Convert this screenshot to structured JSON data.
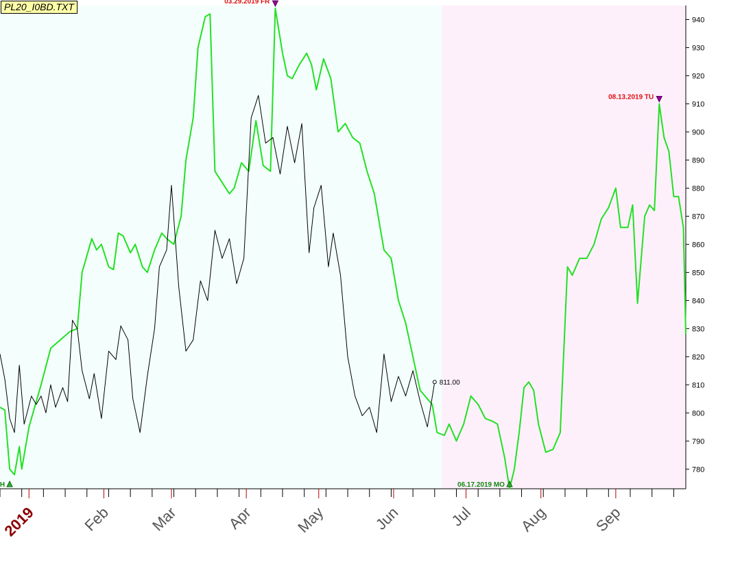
{
  "chart_title": "PL20_I0BD.TXT",
  "chart_data": {
    "type": "line",
    "title": "PL20_I0BD.TXT",
    "xlabel": "",
    "ylabel": "",
    "ylim": [
      773,
      945
    ],
    "xlim": [
      "2018-12-20",
      "2019-09-30"
    ],
    "yticks": [
      780,
      790,
      800,
      810,
      820,
      830,
      840,
      850,
      860,
      870,
      880,
      890,
      900,
      910,
      920,
      930,
      940
    ],
    "xticks": [
      {
        "label": "2019",
        "date": "2019-01-01",
        "year": true
      },
      {
        "label": "Feb",
        "date": "2019-02-01"
      },
      {
        "label": "Mar",
        "date": "2019-03-01"
      },
      {
        "label": "Apr",
        "date": "2019-04-01"
      },
      {
        "label": "May",
        "date": "2019-05-01"
      },
      {
        "label": "Jun",
        "date": "2019-06-01"
      },
      {
        "label": "Jul",
        "date": "2019-07-01"
      },
      {
        "label": "Aug",
        "date": "2019-08-01"
      },
      {
        "label": "Sep",
        "date": "2019-09-01"
      }
    ],
    "grid": false,
    "y_axis_side": "right",
    "background_regions": [
      {
        "from": "2018-12-20",
        "to": "2019-06-21",
        "color": "#f4fffd"
      },
      {
        "from": "2019-06-21",
        "to": "2019-09-30",
        "color": "#fdf0fb"
      }
    ],
    "series": [
      {
        "color": "#22e022",
        "points": [
          [
            "2018-12-20",
            802
          ],
          [
            "2018-12-22",
            801
          ],
          [
            "2018-12-24",
            780
          ],
          [
            "2018-12-26",
            778
          ],
          [
            "2018-12-28",
            788
          ],
          [
            "2018-12-29",
            780
          ],
          [
            "2019-01-01",
            795
          ],
          [
            "2019-01-04",
            804
          ],
          [
            "2019-01-06",
            810
          ],
          [
            "2019-01-10",
            823
          ],
          [
            "2019-01-14",
            826
          ],
          [
            "2019-01-18",
            829
          ],
          [
            "2019-01-21",
            830
          ],
          [
            "2019-01-23",
            850
          ],
          [
            "2019-01-27",
            862
          ],
          [
            "2019-01-29",
            858
          ],
          [
            "2019-01-31",
            860
          ],
          [
            "2019-02-03",
            852
          ],
          [
            "2019-02-05",
            851
          ],
          [
            "2019-02-07",
            864
          ],
          [
            "2019-02-09",
            863
          ],
          [
            "2019-02-12",
            857
          ],
          [
            "2019-02-14",
            860
          ],
          [
            "2019-02-17",
            852
          ],
          [
            "2019-02-19",
            850
          ],
          [
            "2019-02-22",
            858
          ],
          [
            "2019-02-25",
            864
          ],
          [
            "2019-02-27",
            862
          ],
          [
            "2019-03-02",
            860
          ],
          [
            "2019-03-05",
            870
          ],
          [
            "2019-03-07",
            890
          ],
          [
            "2019-03-10",
            905
          ],
          [
            "2019-03-12",
            930
          ],
          [
            "2019-03-15",
            941
          ],
          [
            "2019-03-17",
            942
          ],
          [
            "2019-03-19",
            886
          ],
          [
            "2019-03-22",
            882
          ],
          [
            "2019-03-25",
            878
          ],
          [
            "2019-03-27",
            880
          ],
          [
            "2019-03-30",
            889
          ],
          [
            "2019-04-02",
            886
          ],
          [
            "2019-04-05",
            904
          ],
          [
            "2019-04-08",
            888
          ],
          [
            "2019-04-11",
            886
          ],
          [
            "2019-04-13",
            944
          ],
          [
            "2019-04-16",
            928
          ],
          [
            "2019-04-18",
            920
          ],
          [
            "2019-04-20",
            919
          ],
          [
            "2019-04-23",
            924
          ],
          [
            "2019-04-26",
            928
          ],
          [
            "2019-04-28",
            924
          ],
          [
            "2019-04-30",
            915
          ],
          [
            "2019-05-03",
            926
          ],
          [
            "2019-05-06",
            919
          ],
          [
            "2019-05-09",
            900
          ],
          [
            "2019-05-12",
            903
          ],
          [
            "2019-05-15",
            898
          ],
          [
            "2019-05-18",
            896
          ],
          [
            "2019-05-21",
            886
          ],
          [
            "2019-05-24",
            878
          ],
          [
            "2019-05-28",
            858
          ],
          [
            "2019-05-31",
            855
          ],
          [
            "2019-06-03",
            840
          ],
          [
            "2019-06-06",
            832
          ],
          [
            "2019-06-09",
            820
          ],
          [
            "2019-06-12",
            808
          ],
          [
            "2019-06-15",
            805
          ],
          [
            "2019-06-17",
            803
          ],
          [
            "2019-06-19",
            793
          ],
          [
            "2019-06-22",
            792
          ],
          [
            "2019-06-24",
            796
          ],
          [
            "2019-06-27",
            790
          ],
          [
            "2019-06-30",
            796
          ],
          [
            "2019-07-03",
            806
          ],
          [
            "2019-07-06",
            803
          ],
          [
            "2019-07-09",
            798
          ],
          [
            "2019-07-12",
            797
          ],
          [
            "2019-07-14",
            796
          ],
          [
            "2019-07-17",
            784
          ],
          [
            "2019-07-19",
            773
          ],
          [
            "2019-07-21",
            780
          ],
          [
            "2019-07-23",
            793
          ],
          [
            "2019-07-25",
            809
          ],
          [
            "2019-07-27",
            811
          ],
          [
            "2019-07-29",
            808
          ],
          [
            "2019-07-31",
            796
          ],
          [
            "2019-08-03",
            786
          ],
          [
            "2019-08-06",
            787
          ],
          [
            "2019-08-09",
            793
          ],
          [
            "2019-08-12",
            852
          ],
          [
            "2019-08-14",
            849
          ],
          [
            "2019-08-17",
            855
          ],
          [
            "2019-08-20",
            855
          ],
          [
            "2019-08-23",
            860
          ],
          [
            "2019-08-26",
            869
          ],
          [
            "2019-08-29",
            873
          ],
          [
            "2019-09-01",
            880
          ],
          [
            "2019-09-03",
            866
          ],
          [
            "2019-09-06",
            866
          ],
          [
            "2019-09-08",
            874
          ],
          [
            "2019-09-10",
            839
          ],
          [
            "2019-09-13",
            870
          ],
          [
            "2019-09-15",
            874
          ],
          [
            "2019-09-17",
            872
          ],
          [
            "2019-09-19",
            910
          ],
          [
            "2019-09-21",
            898
          ],
          [
            "2019-09-23",
            893
          ],
          [
            "2019-09-25",
            877
          ],
          [
            "2019-09-27",
            877
          ],
          [
            "2019-09-29",
            866
          ],
          [
            "2019-09-30",
            828
          ]
        ]
      },
      {
        "color": "#000000",
        "points": [
          [
            "2018-12-20",
            821
          ],
          [
            "2018-12-22",
            812
          ],
          [
            "2018-12-24",
            798
          ],
          [
            "2018-12-26",
            793
          ],
          [
            "2018-12-28",
            817
          ],
          [
            "2018-12-30",
            796
          ],
          [
            "2019-01-02",
            806
          ],
          [
            "2019-01-04",
            803
          ],
          [
            "2019-01-06",
            806
          ],
          [
            "2019-01-08",
            800
          ],
          [
            "2019-01-10",
            810
          ],
          [
            "2019-01-12",
            802
          ],
          [
            "2019-01-15",
            809
          ],
          [
            "2019-01-17",
            804
          ],
          [
            "2019-01-19",
            833
          ],
          [
            "2019-01-21",
            830
          ],
          [
            "2019-01-23",
            815
          ],
          [
            "2019-01-26",
            805
          ],
          [
            "2019-01-28",
            814
          ],
          [
            "2019-01-31",
            798
          ],
          [
            "2019-02-03",
            822
          ],
          [
            "2019-02-06",
            819
          ],
          [
            "2019-02-08",
            831
          ],
          [
            "2019-02-11",
            826
          ],
          [
            "2019-02-13",
            805
          ],
          [
            "2019-02-16",
            793
          ],
          [
            "2019-02-19",
            813
          ],
          [
            "2019-02-22",
            830
          ],
          [
            "2019-02-24",
            852
          ],
          [
            "2019-02-27",
            858
          ],
          [
            "2019-03-01",
            881
          ],
          [
            "2019-03-04",
            845
          ],
          [
            "2019-03-07",
            822
          ],
          [
            "2019-03-10",
            826
          ],
          [
            "2019-03-13",
            847
          ],
          [
            "2019-03-16",
            840
          ],
          [
            "2019-03-19",
            865
          ],
          [
            "2019-03-22",
            855
          ],
          [
            "2019-03-25",
            862
          ],
          [
            "2019-03-28",
            846
          ],
          [
            "2019-03-31",
            855
          ],
          [
            "2019-04-03",
            905
          ],
          [
            "2019-04-06",
            913
          ],
          [
            "2019-04-09",
            896
          ],
          [
            "2019-04-12",
            898
          ],
          [
            "2019-04-15",
            885
          ],
          [
            "2019-04-18",
            902
          ],
          [
            "2019-04-21",
            889
          ],
          [
            "2019-04-24",
            903
          ],
          [
            "2019-04-27",
            857
          ],
          [
            "2019-04-29",
            873
          ],
          [
            "2019-05-02",
            881
          ],
          [
            "2019-05-05",
            852
          ],
          [
            "2019-05-07",
            864
          ],
          [
            "2019-05-10",
            849
          ],
          [
            "2019-05-13",
            820
          ],
          [
            "2019-05-16",
            806
          ],
          [
            "2019-05-19",
            799
          ],
          [
            "2019-05-22",
            802
          ],
          [
            "2019-05-25",
            793
          ],
          [
            "2019-05-28",
            821
          ],
          [
            "2019-05-31",
            804
          ],
          [
            "2019-06-03",
            813
          ],
          [
            "2019-06-06",
            806
          ],
          [
            "2019-06-09",
            815
          ],
          [
            "2019-06-12",
            804
          ],
          [
            "2019-06-15",
            795
          ],
          [
            "2019-06-18",
            811
          ]
        ]
      }
    ],
    "annotations": [
      {
        "text": "03.29.2019 FR",
        "date": "2019-04-13",
        "value": 944,
        "color": "#dd1111",
        "marker": "down-arrow"
      },
      {
        "text": "08.13.2019 TU",
        "date": "2019-09-19",
        "value": 910,
        "color": "#dd1111",
        "marker": "down-arrow"
      },
      {
        "text": "06.17.2019 MO",
        "date": "2019-07-19",
        "value": 773,
        "color": "#118811",
        "marker": "up-arrow"
      },
      {
        "text": "TH",
        "date": "2018-12-24",
        "value": 773,
        "color": "#118811",
        "marker": "up-arrow"
      }
    ],
    "last_value_label": {
      "text": "811.00",
      "date": "2019-06-18",
      "value": 811
    }
  }
}
